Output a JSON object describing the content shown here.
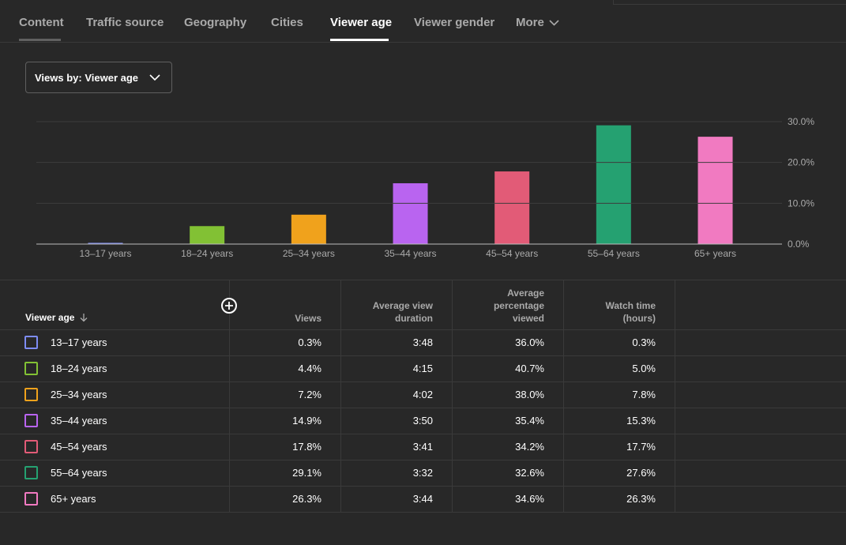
{
  "tabs": [
    {
      "label": "Content"
    },
    {
      "label": "Traffic source"
    },
    {
      "label": "Geography"
    },
    {
      "label": "Cities"
    },
    {
      "label": "Viewer age"
    },
    {
      "label": "Viewer gender"
    },
    {
      "label": "More"
    }
  ],
  "active_tab": "Viewer age",
  "dropdown": {
    "label": "Views by: Viewer age"
  },
  "chart_data": {
    "type": "bar",
    "categories": [
      "13–17 years",
      "18–24 years",
      "25–34 years",
      "35–44 years",
      "45–54 years",
      "55–64 years",
      "65+ years"
    ],
    "values": [
      0.3,
      4.4,
      7.2,
      14.9,
      17.8,
      29.1,
      26.3
    ],
    "colors": [
      "#7e8cf3",
      "#82c134",
      "#f0a21c",
      "#b964f0",
      "#e25b77",
      "#25a171",
      "#f17ac1"
    ],
    "ylim": [
      0,
      30
    ],
    "yticks": [
      "0.0%",
      "10.0%",
      "20.0%",
      "30.0%"
    ],
    "ytick_values": [
      0,
      10,
      20,
      30
    ],
    "grid": true,
    "y_axis_position": "right"
  },
  "table": {
    "headers": {
      "first": "Viewer age",
      "views": "Views",
      "avg_duration": [
        "Average view",
        "duration"
      ],
      "avg_percentage": [
        "Average",
        "percentage",
        "viewed"
      ],
      "watch_time": [
        "Watch time",
        "(hours)"
      ]
    },
    "rows": [
      {
        "label": "13–17 years",
        "views": "0.3%",
        "duration": "3:48",
        "percentage": "36.0%",
        "watch": "0.3%"
      },
      {
        "label": "18–24 years",
        "views": "4.4%",
        "duration": "4:15",
        "percentage": "40.7%",
        "watch": "5.0%"
      },
      {
        "label": "25–34 years",
        "views": "7.2%",
        "duration": "4:02",
        "percentage": "38.0%",
        "watch": "7.8%"
      },
      {
        "label": "35–44 years",
        "views": "14.9%",
        "duration": "3:50",
        "percentage": "35.4%",
        "watch": "15.3%"
      },
      {
        "label": "45–54 years",
        "views": "17.8%",
        "duration": "3:41",
        "percentage": "34.2%",
        "watch": "17.7%"
      },
      {
        "label": "55–64 years",
        "views": "29.1%",
        "duration": "3:32",
        "percentage": "32.6%",
        "watch": "27.6%"
      },
      {
        "label": "65+ years",
        "views": "26.3%",
        "duration": "3:44",
        "percentage": "34.6%",
        "watch": "26.3%"
      }
    ]
  },
  "icons": {
    "sort": "arrow-down-icon",
    "add": "add-column-icon",
    "dropdown": "chevron-down-icon"
  }
}
